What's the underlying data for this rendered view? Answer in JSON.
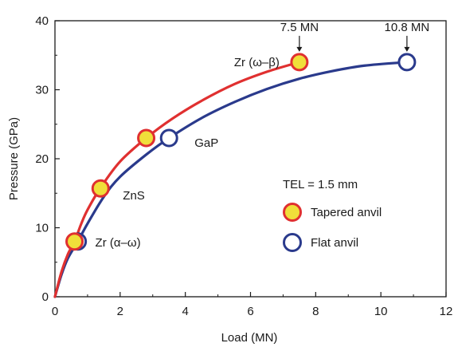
{
  "chart_data": {
    "type": "line",
    "xlabel": "Load (MN)",
    "ylabel": "Pressure (GPa)",
    "xlim": [
      0,
      12
    ],
    "ylim": [
      0,
      40
    ],
    "xticks": [
      "0",
      "2",
      "4",
      "6",
      "8",
      "10",
      "12"
    ],
    "yticks": [
      "0",
      "10",
      "20",
      "30",
      "40"
    ],
    "grid": false,
    "colors": {
      "tapered": "#e03030",
      "flat": "#2a3a8c",
      "marker_fill": "#f0df3a"
    },
    "series": [
      {
        "name": "Tapered anvil",
        "curve_x": [
          0,
          0.2,
          0.4,
          0.6,
          0.8,
          1.0,
          1.4,
          2.0,
          2.8,
          3.6,
          4.5,
          5.5,
          6.5,
          7.5
        ],
        "curve_y": [
          0,
          3.6,
          6.2,
          8.0,
          10.5,
          12.6,
          15.8,
          19.6,
          23.0,
          25.8,
          28.4,
          30.8,
          32.6,
          34.0
        ],
        "points": [
          {
            "x": 0.6,
            "y": 8.0,
            "label": "Zr (α–ω)"
          },
          {
            "x": 1.4,
            "y": 15.7,
            "label": "ZnS"
          },
          {
            "x": 2.8,
            "y": 23.0,
            "label": ""
          },
          {
            "x": 7.5,
            "y": 34.0,
            "label": "Zr (ω–β)"
          }
        ]
      },
      {
        "name": "Flat anvil",
        "curve_x": [
          0,
          0.2,
          0.4,
          0.7,
          1.0,
          1.5,
          2.0,
          2.8,
          3.5,
          4.5,
          5.5,
          6.5,
          7.5,
          8.5,
          9.5,
          10.8
        ],
        "curve_y": [
          0,
          3.2,
          5.6,
          8.0,
          10.6,
          14.5,
          17.4,
          20.6,
          23.0,
          25.9,
          28.2,
          30.1,
          31.6,
          32.7,
          33.5,
          34.0
        ],
        "points": [
          {
            "x": 0.7,
            "y": 8.0,
            "label": ""
          },
          {
            "x": 3.5,
            "y": 23.0,
            "label": "GaP"
          },
          {
            "x": 10.8,
            "y": 34.0,
            "label": ""
          }
        ]
      }
    ],
    "annotations": [
      {
        "text": "7.5 MN",
        "x": 7.5,
        "y": 34.0
      },
      {
        "text": "10.8 MN",
        "x": 10.8,
        "y": 34.0
      }
    ],
    "legend": {
      "title": "TEL = 1.5 mm",
      "entries": [
        "Tapered anvil",
        "Flat anvil"
      ],
      "position": "bottom-right"
    }
  }
}
